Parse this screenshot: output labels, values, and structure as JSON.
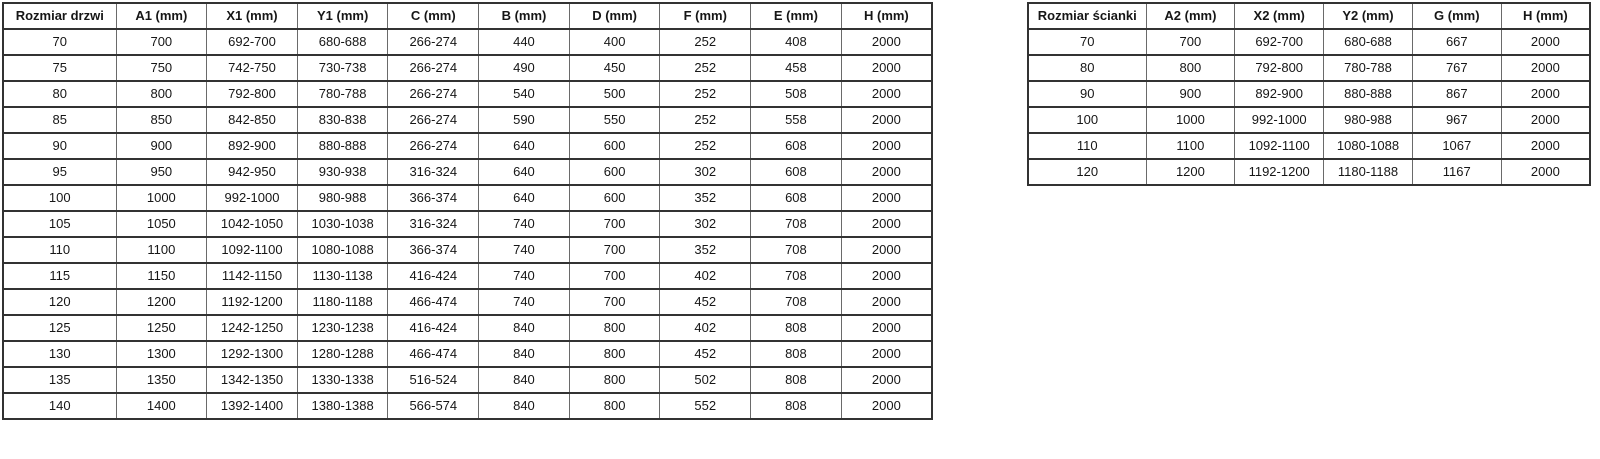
{
  "colors": {
    "background": "#ffffff",
    "text": "#161616",
    "border_horizontal": "#323232",
    "border_vertical": "#6a6a6a"
  },
  "tables": [
    {
      "id": "door-sizes",
      "headers": [
        "Rozmiar drzwi",
        "A1 (mm)",
        "X1 (mm)",
        "Y1 (mm)",
        "C (mm)",
        "B (mm)",
        "D (mm)",
        "F (mm)",
        "E (mm)",
        "H (mm)"
      ],
      "rows": [
        [
          "70",
          "700",
          "692-700",
          "680-688",
          "266-274",
          "440",
          "400",
          "252",
          "408",
          "2000"
        ],
        [
          "75",
          "750",
          "742-750",
          "730-738",
          "266-274",
          "490",
          "450",
          "252",
          "458",
          "2000"
        ],
        [
          "80",
          "800",
          "792-800",
          "780-788",
          "266-274",
          "540",
          "500",
          "252",
          "508",
          "2000"
        ],
        [
          "85",
          "850",
          "842-850",
          "830-838",
          "266-274",
          "590",
          "550",
          "252",
          "558",
          "2000"
        ],
        [
          "90",
          "900",
          "892-900",
          "880-888",
          "266-274",
          "640",
          "600",
          "252",
          "608",
          "2000"
        ],
        [
          "95",
          "950",
          "942-950",
          "930-938",
          "316-324",
          "640",
          "600",
          "302",
          "608",
          "2000"
        ],
        [
          "100",
          "1000",
          "992-1000",
          "980-988",
          "366-374",
          "640",
          "600",
          "352",
          "608",
          "2000"
        ],
        [
          "105",
          "1050",
          "1042-1050",
          "1030-1038",
          "316-324",
          "740",
          "700",
          "302",
          "708",
          "2000"
        ],
        [
          "110",
          "1100",
          "1092-1100",
          "1080-1088",
          "366-374",
          "740",
          "700",
          "352",
          "708",
          "2000"
        ],
        [
          "115",
          "1150",
          "1142-1150",
          "1130-1138",
          "416-424",
          "740",
          "700",
          "402",
          "708",
          "2000"
        ],
        [
          "120",
          "1200",
          "1192-1200",
          "1180-1188",
          "466-474",
          "740",
          "700",
          "452",
          "708",
          "2000"
        ],
        [
          "125",
          "1250",
          "1242-1250",
          "1230-1238",
          "416-424",
          "840",
          "800",
          "402",
          "808",
          "2000"
        ],
        [
          "130",
          "1300",
          "1292-1300",
          "1280-1288",
          "466-474",
          "840",
          "800",
          "452",
          "808",
          "2000"
        ],
        [
          "135",
          "1350",
          "1342-1350",
          "1330-1338",
          "516-524",
          "840",
          "800",
          "502",
          "808",
          "2000"
        ],
        [
          "140",
          "1400",
          "1392-1400",
          "1380-1388",
          "566-574",
          "840",
          "800",
          "552",
          "808",
          "2000"
        ]
      ]
    },
    {
      "id": "wall-panel-sizes",
      "headers": [
        "Rozmiar ścianki",
        "A2 (mm)",
        "X2 (mm)",
        "Y2 (mm)",
        "G (mm)",
        "H (mm)"
      ],
      "rows": [
        [
          "70",
          "700",
          "692-700",
          "680-688",
          "667",
          "2000"
        ],
        [
          "80",
          "800",
          "792-800",
          "780-788",
          "767",
          "2000"
        ],
        [
          "90",
          "900",
          "892-900",
          "880-888",
          "867",
          "2000"
        ],
        [
          "100",
          "1000",
          "992-1000",
          "980-988",
          "967",
          "2000"
        ],
        [
          "110",
          "1100",
          "1092-1100",
          "1080-1088",
          "1067",
          "2000"
        ],
        [
          "120",
          "1200",
          "1192-1200",
          "1180-1188",
          "1167",
          "2000"
        ]
      ]
    }
  ]
}
